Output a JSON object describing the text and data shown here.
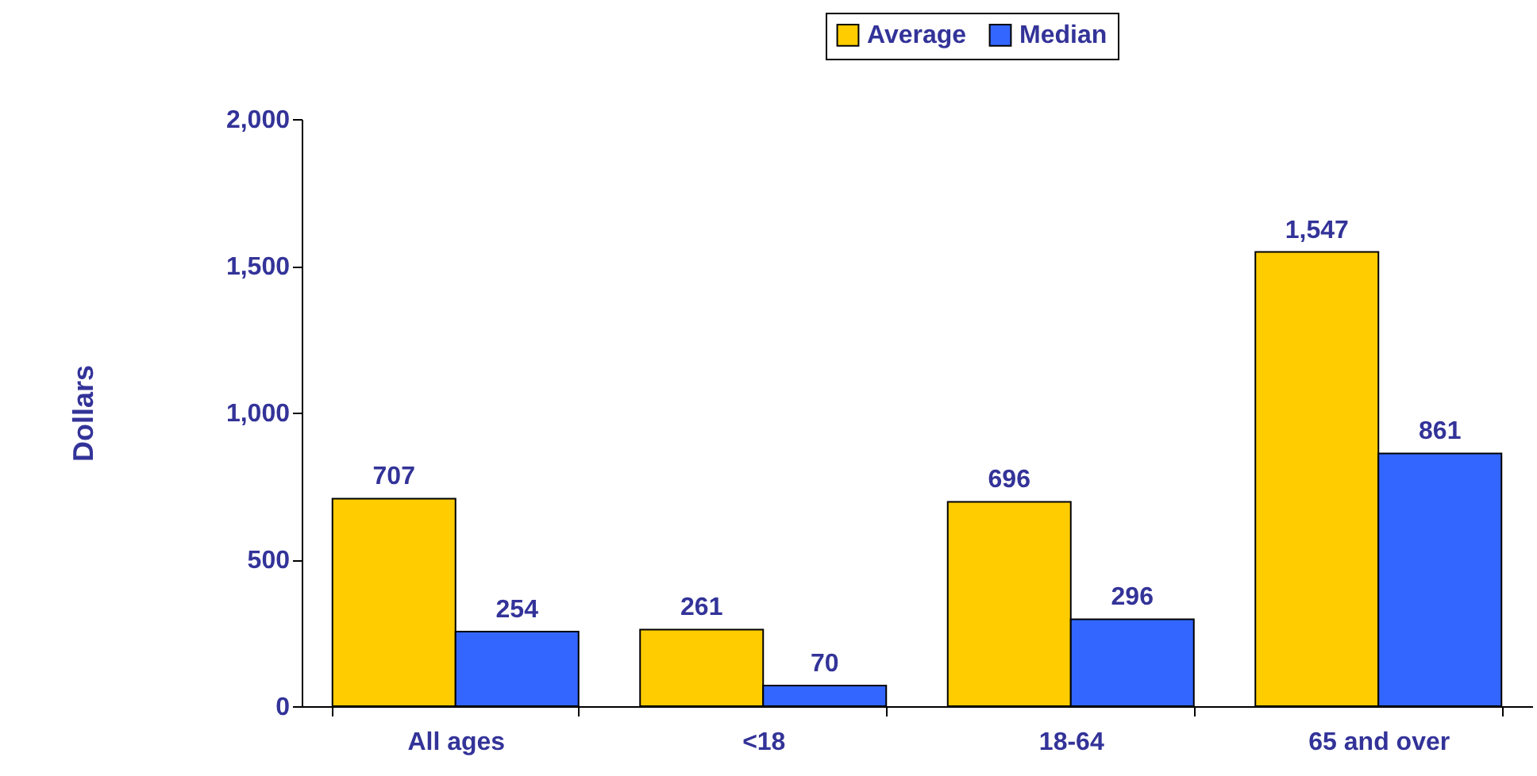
{
  "chart_data": {
    "type": "bar",
    "ylabel": "Dollars",
    "categories": [
      "All ages",
      "<18",
      "18-64",
      "65 and over"
    ],
    "series": [
      {
        "name": "Average",
        "color": "#ffcc00",
        "values": [
          707,
          261,
          696,
          1547
        ],
        "value_labels": [
          "707",
          "261",
          "696",
          "1,547"
        ]
      },
      {
        "name": "Median",
        "color": "#3366ff",
        "values": [
          254,
          70,
          296,
          861
        ],
        "value_labels": [
          "254",
          "70",
          "296",
          "861"
        ]
      }
    ],
    "ylim": [
      0,
      2000
    ],
    "yticks": [
      0,
      500,
      {
        "value": 1000,
        "label": "1,000"
      },
      {
        "value": 1500,
        "label": "1,500"
      },
      {
        "value": 2000,
        "label": "2,000"
      }
    ],
    "grid": false,
    "legend": "top right"
  }
}
